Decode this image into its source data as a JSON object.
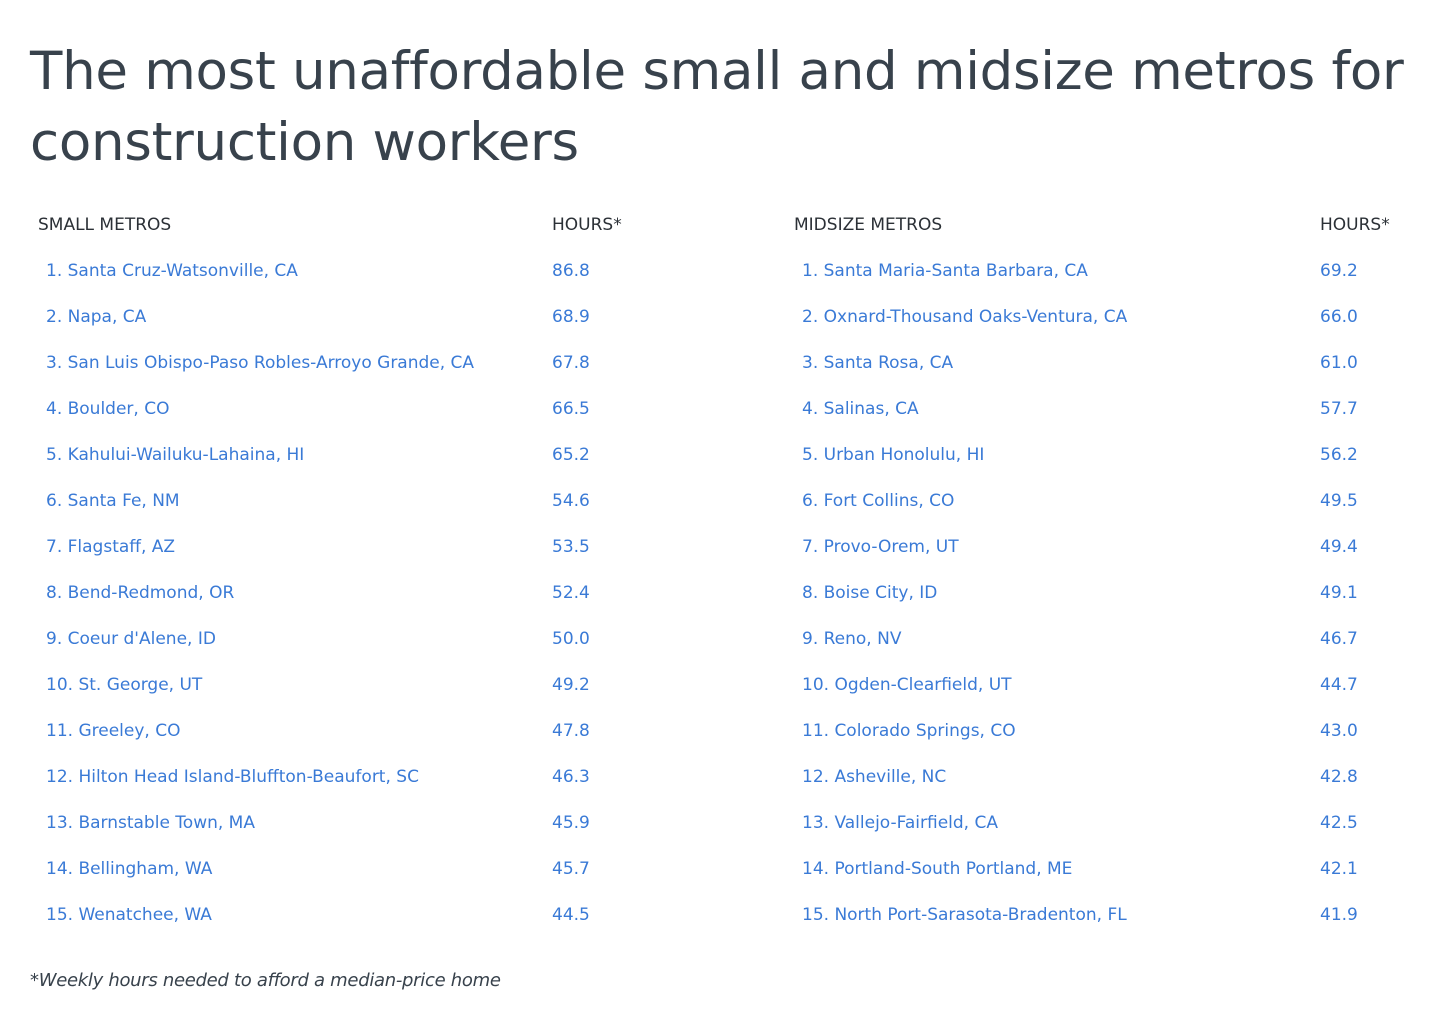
{
  "title": "The most unaffordable small and midsize metros for construction workers",
  "small_metros": {
    "header_name": "SMALL METROS",
    "header_hours": "HOURS*",
    "rows": [
      {
        "name": "1. Santa Cruz-Watsonville, CA",
        "hours": "86.8"
      },
      {
        "name": "2. Napa, CA",
        "hours": "68.9"
      },
      {
        "name": "3. San Luis Obispo-Paso Robles-Arroyo Grande, CA",
        "hours": "67.8"
      },
      {
        "name": "4. Boulder, CO",
        "hours": "66.5"
      },
      {
        "name": "5. Kahului-Wailuku-Lahaina, HI",
        "hours": "65.2"
      },
      {
        "name": "6. Santa Fe, NM",
        "hours": "54.6"
      },
      {
        "name": "7. Flagstaff, AZ",
        "hours": "53.5"
      },
      {
        "name": "8. Bend-Redmond, OR",
        "hours": "52.4"
      },
      {
        "name": "9. Coeur d'Alene, ID",
        "hours": "50.0"
      },
      {
        "name": "10. St. George, UT",
        "hours": "49.2"
      },
      {
        "name": "11. Greeley, CO",
        "hours": "47.8"
      },
      {
        "name": "12. Hilton Head Island-Bluffton-Beaufort, SC",
        "hours": "46.3"
      },
      {
        "name": "13. Barnstable Town, MA",
        "hours": "45.9"
      },
      {
        "name": "14. Bellingham, WA",
        "hours": "45.7"
      },
      {
        "name": "15. Wenatchee, WA",
        "hours": "44.5"
      }
    ]
  },
  "midsize_metros": {
    "header_name": "MIDSIZE METROS",
    "header_hours": "HOURS*",
    "rows": [
      {
        "name": "1. Santa Maria-Santa Barbara, CA",
        "hours": "69.2"
      },
      {
        "name": "2. Oxnard-Thousand Oaks-Ventura, CA",
        "hours": "66.0"
      },
      {
        "name": "3. Santa Rosa, CA",
        "hours": "61.0"
      },
      {
        "name": "4. Salinas, CA",
        "hours": "57.7"
      },
      {
        "name": "5. Urban Honolulu, HI",
        "hours": "56.2"
      },
      {
        "name": "6. Fort Collins, CO",
        "hours": "49.5"
      },
      {
        "name": "7. Provo-Orem, UT",
        "hours": "49.4"
      },
      {
        "name": "8. Boise City, ID",
        "hours": "49.1"
      },
      {
        "name": "9. Reno, NV",
        "hours": "46.7"
      },
      {
        "name": "10. Ogden-Clearfield, UT",
        "hours": "44.7"
      },
      {
        "name": "11. Colorado Springs, CO",
        "hours": "43.0"
      },
      {
        "name": "12. Asheville, NC",
        "hours": "42.8"
      },
      {
        "name": "13. Vallejo-Fairfield, CA",
        "hours": "42.5"
      },
      {
        "name": "14. Portland-South Portland, ME",
        "hours": "42.1"
      },
      {
        "name": "15. North Port-Sarasota-Bradenton, FL",
        "hours": "41.9"
      }
    ]
  },
  "footnote": "*Weekly hours needed to afford a median-price home",
  "colors": {
    "title": "#38424c",
    "link": "#3a7ad6",
    "header": "#2b3036"
  }
}
